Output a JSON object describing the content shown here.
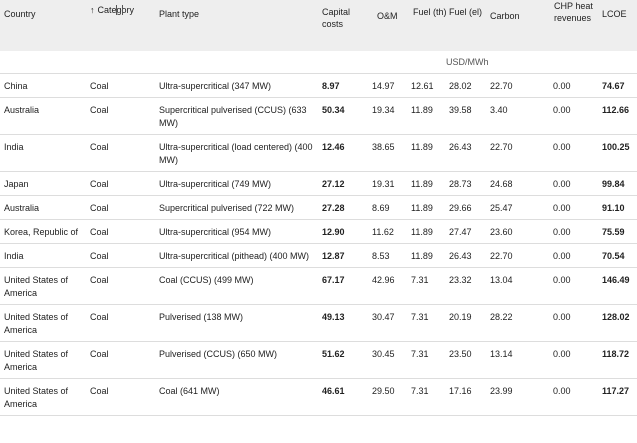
{
  "header": {
    "country": "Country",
    "category": "Category",
    "plant_type": "Plant type",
    "capital_costs": "Capital costs",
    "om": "O&M",
    "fuel_th": "Fuel (th)",
    "fuel_el": "Fuel (el)",
    "carbon": "Carbon",
    "chp": "CHP heat revenues",
    "lcoe": "LCOE",
    "sort_arrow": "↑"
  },
  "units": "USD/MWh",
  "rows": [
    {
      "country": "China",
      "category": "Coal",
      "plant": "Ultra-supercritical (347 MW)",
      "capital": "8.97",
      "om": "14.97",
      "fuel_th": "12.61",
      "fuel_el": "28.02",
      "carbon": "22.70",
      "chp": "0.00",
      "lcoe": "74.67"
    },
    {
      "country": "Australia",
      "category": "Coal",
      "plant": "Supercritical pulverised (CCUS) (633 MW)",
      "capital": "50.34",
      "om": "19.34",
      "fuel_th": "11.89",
      "fuel_el": "39.58",
      "carbon": "3.40",
      "chp": "0.00",
      "lcoe": "112.66"
    },
    {
      "country": "India",
      "category": "Coal",
      "plant": "Ultra-supercritical (load centered) (400 MW)",
      "capital": "12.46",
      "om": "38.65",
      "fuel_th": "11.89",
      "fuel_el": "26.43",
      "carbon": "22.70",
      "chp": "0.00",
      "lcoe": "100.25"
    },
    {
      "country": "Japan",
      "category": "Coal",
      "plant": "Ultra-supercritical (749 MW)",
      "capital": "27.12",
      "om": "19.31",
      "fuel_th": "11.89",
      "fuel_el": "28.73",
      "carbon": "24.68",
      "chp": "0.00",
      "lcoe": "99.84"
    },
    {
      "country": "Australia",
      "category": "Coal",
      "plant": "Supercritical pulverised (722 MW)",
      "capital": "27.28",
      "om": "8.69",
      "fuel_th": "11.89",
      "fuel_el": "29.66",
      "carbon": "25.47",
      "chp": "0.00",
      "lcoe": "91.10"
    },
    {
      "country": "Korea, Republic of",
      "category": "Coal",
      "plant": "Ultra-supercritical (954 MW)",
      "capital": "12.90",
      "om": "11.62",
      "fuel_th": "11.89",
      "fuel_el": "27.47",
      "carbon": "23.60",
      "chp": "0.00",
      "lcoe": "75.59"
    },
    {
      "country": "India",
      "category": "Coal",
      "plant": "Ultra-supercritical (pithead) (400 MW)",
      "capital": "12.87",
      "om": "8.53",
      "fuel_th": "11.89",
      "fuel_el": "26.43",
      "carbon": "22.70",
      "chp": "0.00",
      "lcoe": "70.54"
    },
    {
      "country": "United States of America",
      "category": "Coal",
      "plant": "Coal (CCUS) (499 MW)",
      "capital": "67.17",
      "om": "42.96",
      "fuel_th": "7.31",
      "fuel_el": "23.32",
      "carbon": "13.04",
      "chp": "0.00",
      "lcoe": "146.49"
    },
    {
      "country": "United States of America",
      "category": "Coal",
      "plant": "Pulverised (138 MW)",
      "capital": "49.13",
      "om": "30.47",
      "fuel_th": "7.31",
      "fuel_el": "20.19",
      "carbon": "28.22",
      "chp": "0.00",
      "lcoe": "128.02"
    },
    {
      "country": "United States of America",
      "category": "Coal",
      "plant": "Pulverised (CCUS) (650 MW)",
      "capital": "51.62",
      "om": "30.45",
      "fuel_th": "7.31",
      "fuel_el": "23.50",
      "carbon": "13.14",
      "chp": "0.00",
      "lcoe": "118.72"
    },
    {
      "country": "United States of America",
      "category": "Coal",
      "plant": "Coal (641 MW)",
      "capital": "46.61",
      "om": "29.50",
      "fuel_th": "7.31",
      "fuel_el": "17.16",
      "carbon": "23.99",
      "chp": "0.00",
      "lcoe": "117.27"
    }
  ]
}
